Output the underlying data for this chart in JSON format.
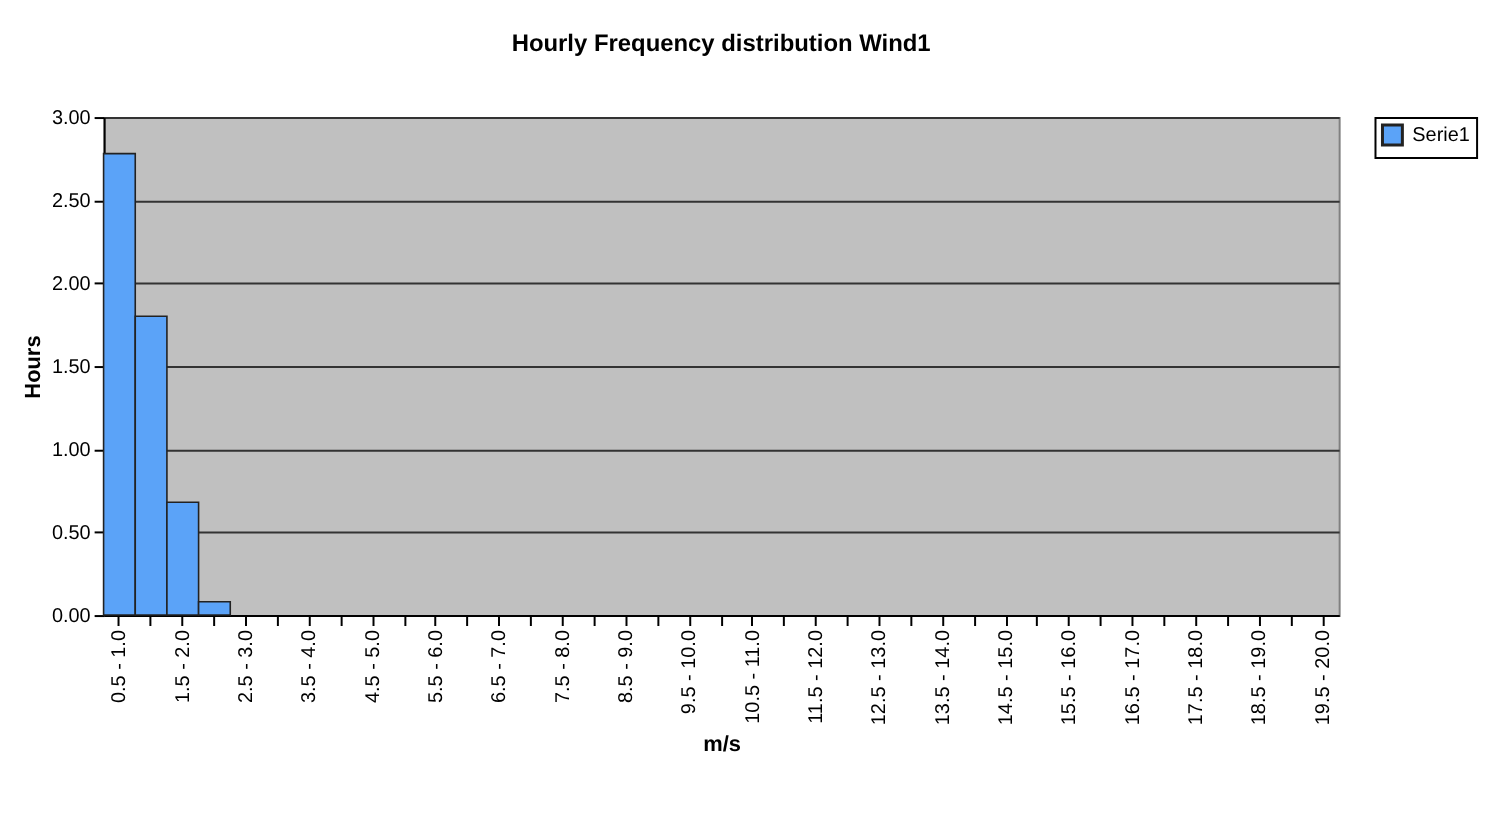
{
  "chart_data": {
    "type": "bar",
    "title": "Hourly Frequency distribution Wind1",
    "xlabel": "m/s",
    "ylabel": "Hours",
    "categories": [
      "0.5 - 1.0",
      null,
      "1.5 - 2.0",
      null,
      "2.5 - 3.0",
      null,
      "3.5 - 4.0",
      null,
      "4.5 - 5.0",
      null,
      "5.5 - 6.0",
      null,
      "6.5 - 7.0",
      null,
      "7.5 - 8.0",
      null,
      "8.5 - 9.0",
      null,
      "9.5 - 10.0",
      null,
      "10.5 - 11.0",
      null,
      "11.5 - 12.0",
      null,
      "12.5 - 13.0",
      null,
      "13.5 - 14.0",
      null,
      "14.5 - 15.0",
      null,
      "15.5 - 16.0",
      null,
      "16.5 - 17.0",
      null,
      "17.5 - 18.0",
      null,
      "18.5 - 19.0",
      null,
      "19.5 - 20.0"
    ],
    "series": [
      {
        "name": "Serie1",
        "color": "#5ba3f8",
        "values": [
          2.78,
          1.8,
          0.68,
          0.08,
          0,
          0,
          0,
          0,
          0,
          0,
          0,
          0,
          0,
          0,
          0,
          0,
          0,
          0,
          0,
          0,
          0,
          0,
          0,
          0,
          0,
          0,
          0,
          0,
          0,
          0,
          0,
          0,
          0,
          0,
          0,
          0,
          0,
          0,
          0
        ]
      }
    ],
    "ylim": [
      0,
      3
    ],
    "yticks": [
      {
        "value": 0,
        "label": "0.00"
      },
      {
        "value": 0.5,
        "label": "0.50"
      },
      {
        "value": 1,
        "label": "1.00"
      },
      {
        "value": 1.5,
        "label": "1.50"
      },
      {
        "value": 2,
        "label": "2.00"
      },
      {
        "value": 2.5,
        "label": "2.50"
      },
      {
        "value": 3,
        "label": "3.00"
      }
    ],
    "grid": "y",
    "legend": "right"
  }
}
